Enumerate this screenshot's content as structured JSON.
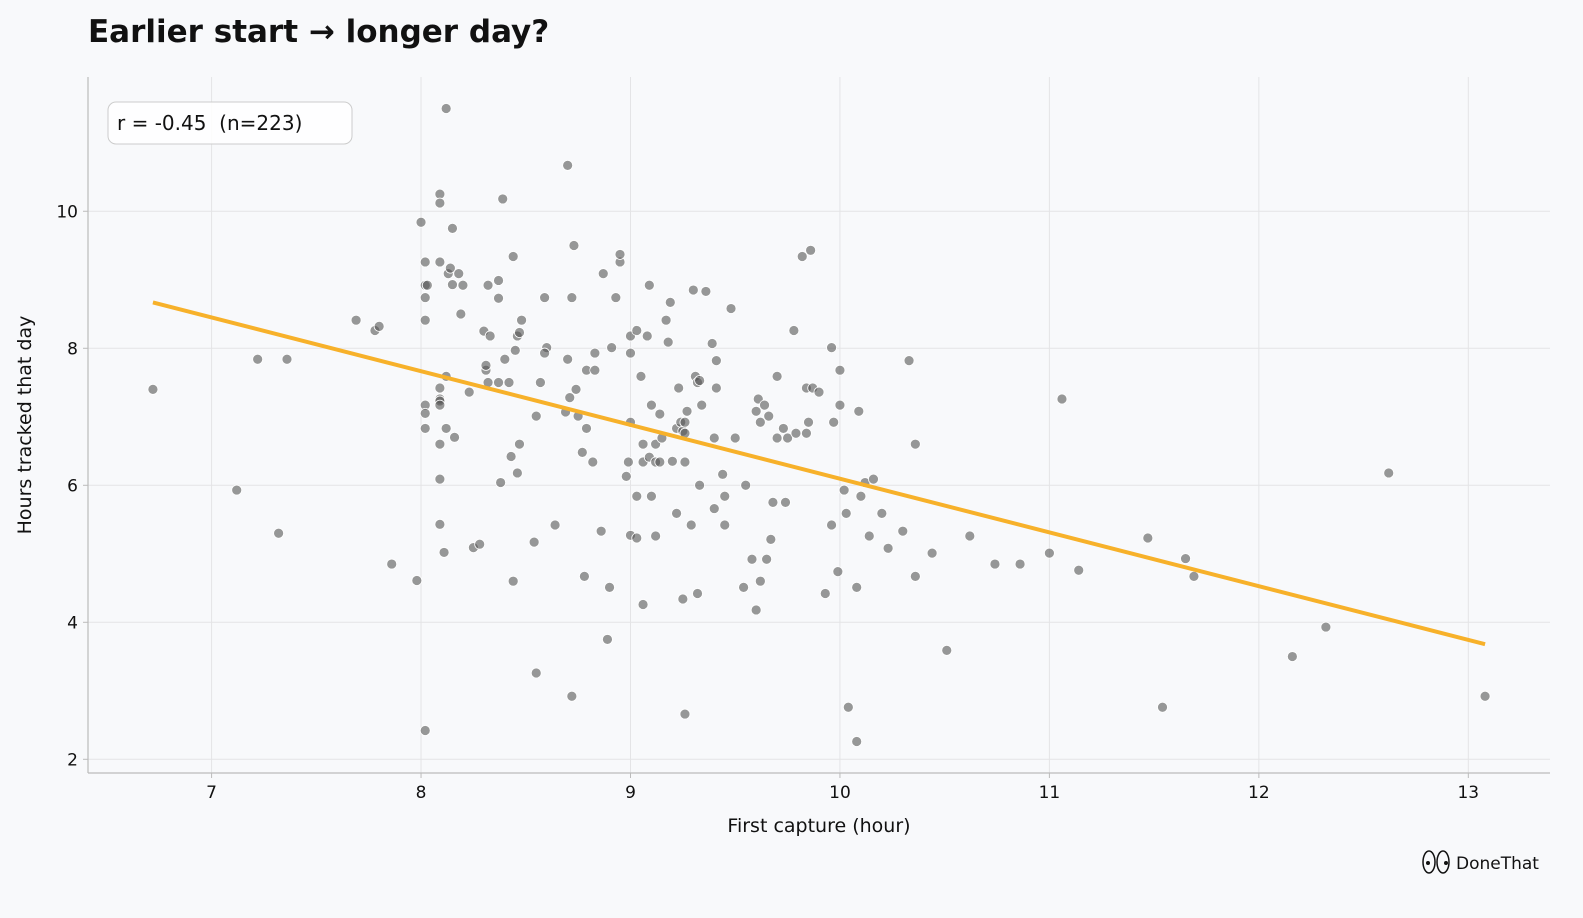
{
  "chart_data": {
    "type": "scatter",
    "title": "Earlier start → longer day?",
    "x_label": "First capture (hour)",
    "y_label": "Hours tracked that day",
    "annotation": "r = -0.45  (n=223)",
    "brand": "DoneThat",
    "color": "#555555",
    "grid": true,
    "xlim": [
      6.41,
      13.39
    ],
    "ylim": [
      1.8,
      11.96
    ],
    "xticks": [
      7,
      8,
      9,
      10,
      11,
      12,
      13
    ],
    "yticks": [
      2,
      4,
      6,
      8,
      10
    ],
    "trend": {
      "color": "#f7b12a",
      "x": [
        6.72,
        13.08
      ],
      "y": [
        8.67,
        3.68
      ]
    },
    "x": [
      6.72,
      7.12,
      7.22,
      7.36,
      7.32,
      7.69,
      7.78,
      7.8,
      7.86,
      7.98,
      8.0,
      8.02,
      8.02,
      8.03,
      8.02,
      8.02,
      8.02,
      8.02,
      8.02,
      8.02,
      8.09,
      8.09,
      8.09,
      8.09,
      8.09,
      8.09,
      8.09,
      8.09,
      8.09,
      8.09,
      8.11,
      8.12,
      8.12,
      8.12,
      8.13,
      8.14,
      8.15,
      8.15,
      8.16,
      8.18,
      8.19,
      8.2,
      8.23,
      8.25,
      8.28,
      8.3,
      8.31,
      8.31,
      8.32,
      8.32,
      8.33,
      8.37,
      8.37,
      8.37,
      8.38,
      8.39,
      8.4,
      8.42,
      8.43,
      8.44,
      8.44,
      8.45,
      8.46,
      8.46,
      8.47,
      8.48,
      8.47,
      8.54,
      8.55,
      8.55,
      8.57,
      8.59,
      8.6,
      8.59,
      8.64,
      8.69,
      8.7,
      8.7,
      8.71,
      8.72,
      8.72,
      8.73,
      8.74,
      8.75,
      8.77,
      8.78,
      8.79,
      8.79,
      8.82,
      8.83,
      8.83,
      8.86,
      8.87,
      8.89,
      8.9,
      8.91,
      8.93,
      8.95,
      8.95,
      8.98,
      8.99,
      9.0,
      9.0,
      9.0,
      9.0,
      9.03,
      9.03,
      9.03,
      9.05,
      9.06,
      9.06,
      9.06,
      9.08,
      9.09,
      9.09,
      9.1,
      9.1,
      9.12,
      9.12,
      9.12,
      9.14,
      9.14,
      9.15,
      9.17,
      9.18,
      9.19,
      9.2,
      9.22,
      9.22,
      9.23,
      9.24,
      9.25,
      9.25,
      9.26,
      9.26,
      9.26,
      9.26,
      9.27,
      9.29,
      9.3,
      9.31,
      9.32,
      9.32,
      9.33,
      9.33,
      9.34,
      9.36,
      9.39,
      9.4,
      9.4,
      9.41,
      9.41,
      9.44,
      9.45,
      9.45,
      9.48,
      9.5,
      9.54,
      9.55,
      9.58,
      9.6,
      9.6,
      9.61,
      9.62,
      9.62,
      9.64,
      9.65,
      9.66,
      9.67,
      9.68,
      9.7,
      9.7,
      9.73,
      9.74,
      9.75,
      9.78,
      9.79,
      9.82,
      9.84,
      9.84,
      9.85,
      9.86,
      9.87,
      9.9,
      9.93,
      9.96,
      9.96,
      9.97,
      9.99,
      10.0,
      10.0,
      10.02,
      10.03,
      10.04,
      10.08,
      10.08,
      10.09,
      10.1,
      10.12,
      10.14,
      10.16,
      10.2,
      10.23,
      10.3,
      10.33,
      10.36,
      10.36,
      10.44,
      10.51,
      10.62,
      10.74,
      10.86,
      11.0,
      11.06,
      11.14,
      11.47,
      11.54,
      11.65,
      11.69,
      12.16,
      12.32,
      12.62,
      13.08
    ],
    "y": [
      7.4,
      5.93,
      7.84,
      7.84,
      5.3,
      8.41,
      8.26,
      8.32,
      4.85,
      4.61,
      9.84,
      9.26,
      8.92,
      8.92,
      8.74,
      8.41,
      7.17,
      7.05,
      6.83,
      2.42,
      10.25,
      10.12,
      9.26,
      7.42,
      7.26,
      7.23,
      7.17,
      6.6,
      6.09,
      5.43,
      5.02,
      11.5,
      7.59,
      6.83,
      9.09,
      9.17,
      8.93,
      9.75,
      6.7,
      9.09,
      8.5,
      8.92,
      7.36,
      5.09,
      5.14,
      8.25,
      7.68,
      7.75,
      7.5,
      8.92,
      8.18,
      8.99,
      8.73,
      7.5,
      6.04,
      10.18,
      7.84,
      7.5,
      6.42,
      9.34,
      4.6,
      7.97,
      6.18,
      8.18,
      8.23,
      8.41,
      6.6,
      5.17,
      7.01,
      3.26,
      7.5,
      8.74,
      8.01,
      7.93,
      5.42,
      7.07,
      10.67,
      7.84,
      7.28,
      2.92,
      8.74,
      9.5,
      7.4,
      7.01,
      6.48,
      4.67,
      6.83,
      7.68,
      6.34,
      7.68,
      7.93,
      5.33,
      9.09,
      3.75,
      4.51,
      8.01,
      8.74,
      9.26,
      9.37,
      6.13,
      6.34,
      5.27,
      7.93,
      8.18,
      6.92,
      8.26,
      5.84,
      5.23,
      7.59,
      6.6,
      6.34,
      4.26,
      8.18,
      6.41,
      8.92,
      7.17,
      5.84,
      5.26,
      6.6,
      6.34,
      6.34,
      7.04,
      6.69,
      8.41,
      8.09,
      8.67,
      6.35,
      5.59,
      6.83,
      7.42,
      6.92,
      6.79,
      4.34,
      2.66,
      6.92,
      6.76,
      6.34,
      7.08,
      5.42,
      8.85,
      7.59,
      7.5,
      4.42,
      6.0,
      7.53,
      7.17,
      8.83,
      8.07,
      5.66,
      6.69,
      7.42,
      7.82,
      6.16,
      5.84,
      5.42,
      8.58,
      6.69,
      4.51,
      6.0,
      4.92,
      7.08,
      4.18,
      7.26,
      4.6,
      6.92,
      7.17,
      4.92,
      7.01,
      5.21,
      5.75,
      6.69,
      7.59,
      6.83,
      5.75,
      6.69,
      8.26,
      6.76,
      9.34,
      7.42,
      6.76,
      6.92,
      9.43,
      7.42,
      7.36,
      4.42,
      5.42,
      8.01,
      6.92,
      4.74,
      7.68,
      7.17,
      5.93,
      5.59,
      2.76,
      2.26,
      4.51,
      7.08,
      5.84,
      6.04,
      5.26,
      6.09,
      5.59,
      5.08,
      5.33,
      7.82,
      6.6,
      4.67,
      5.01,
      3.59,
      5.26,
      4.85,
      4.85,
      5.01,
      7.26,
      4.76,
      5.23,
      2.76,
      4.93,
      4.67,
      3.5,
      3.93,
      6.18,
      2.92
    ]
  }
}
